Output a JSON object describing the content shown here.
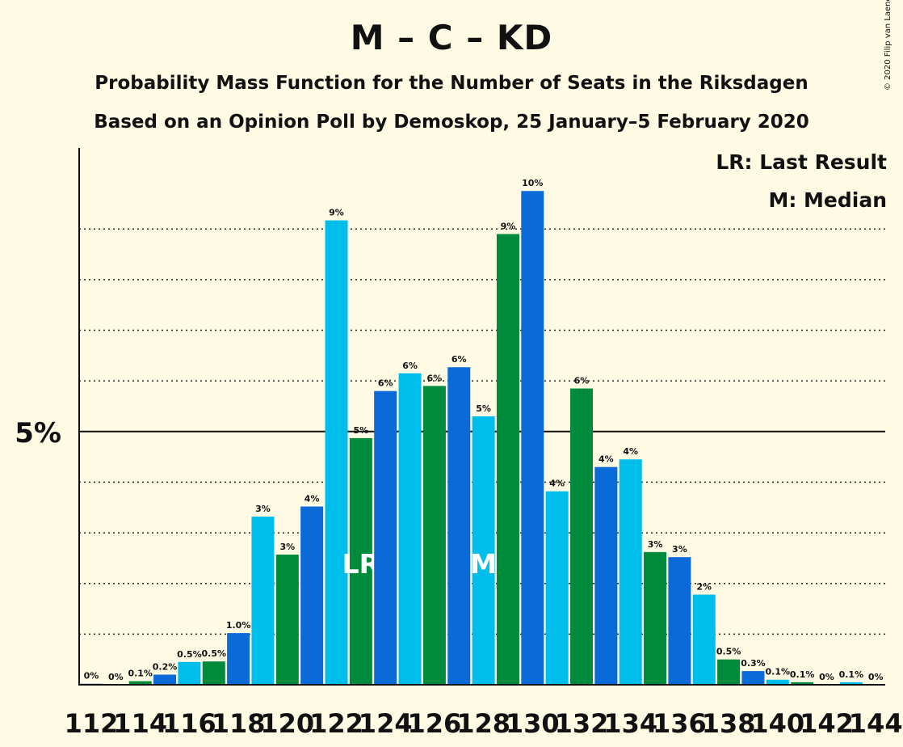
{
  "chart_data": {
    "type": "bar",
    "title": "M – C – KD",
    "subtitle1": "Probability Mass Function for the Number of Seats in the Riksdagen",
    "subtitle2": "Based on an Opinion Poll by Demoskop, 25 January–5 February 2020",
    "copyright": "© 2020 Filip van Laenen",
    "legend": [
      {
        "key": "LR",
        "text": "LR: Last Result"
      },
      {
        "key": "M",
        "text": "M: Median"
      }
    ],
    "ylim": [
      0,
      10.6
    ],
    "y_tick_label": "5%",
    "y_tick_value": 5,
    "grid": [
      1,
      2,
      3,
      4,
      6,
      7,
      8,
      9
    ],
    "x_tick_labels": [
      "112",
      "114",
      "116",
      "118",
      "120",
      "122",
      "124",
      "126",
      "128",
      "130",
      "132",
      "134",
      "136",
      "138",
      "140",
      "142",
      "144"
    ],
    "categories": [
      112,
      113,
      114,
      115,
      116,
      117,
      118,
      119,
      120,
      121,
      122,
      123,
      124,
      125,
      126,
      127,
      128,
      129,
      130,
      131,
      132,
      133,
      134,
      135,
      136,
      137,
      138,
      139,
      140,
      141,
      142,
      143,
      144
    ],
    "values": [
      0.02,
      0,
      0.07,
      0.2,
      0.45,
      0.46,
      1.02,
      3.32,
      2.57,
      3.52,
      9.17,
      4.87,
      5.8,
      6.15,
      5.9,
      6.27,
      5.3,
      8.9,
      9.75,
      3.82,
      5.85,
      4.3,
      4.45,
      2.62,
      2.52,
      1.78,
      0.5,
      0.27,
      0.1,
      0.05,
      0,
      0.05,
      0
    ],
    "labels": [
      "0%",
      "0%",
      "0.1%",
      "0.2%",
      "0.5%",
      "0.5%",
      "1.0%",
      "3%",
      "3%",
      "4%",
      "9%",
      "5%",
      "6%",
      "6%",
      "6%",
      "6%",
      "5%",
      "9%",
      "10%",
      "4%",
      "6%",
      "4%",
      "4%",
      "3%",
      "3%",
      "2%",
      "0.5%",
      "0.3%",
      "0.1%",
      "0.1%",
      "0%",
      "0.1%",
      "0%"
    ],
    "last_result_seat": 123,
    "median_seat": 128,
    "last_result_marker": "LR",
    "median_marker": "M",
    "colors": {
      "blue": "#0A6AD8",
      "cyan": "#00BEEB",
      "green": "#008A3C",
      "background": "#FFFAE3"
    }
  }
}
